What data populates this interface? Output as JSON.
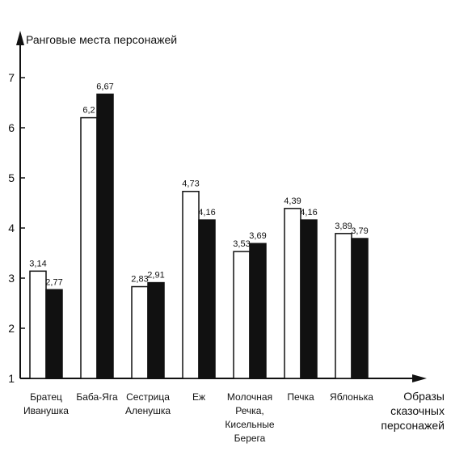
{
  "chart_data": {
    "type": "bar",
    "ylabel": "Ранговые места персонажей",
    "xlabel": [
      "Образы",
      "сказочных",
      "персонажей"
    ],
    "ylim": [
      1,
      7
    ],
    "yticks": [
      1,
      2,
      3,
      4,
      5,
      6,
      7
    ],
    "grid": false,
    "legend": "none",
    "categories": [
      [
        "Братец",
        "Иванушка"
      ],
      [
        "Баба-Яга"
      ],
      [
        "Сестрица",
        "Аленушка"
      ],
      [
        "Еж"
      ],
      [
        "Молочная",
        "Речка,",
        "Кисельные",
        "Берега"
      ],
      [
        "Печка"
      ],
      [
        "Яблонька"
      ]
    ],
    "series": [
      {
        "values": [
          3.14,
          6.2,
          2.83,
          4.73,
          3.53,
          4.39,
          3.89
        ],
        "labels": [
          "3,14",
          "6,2",
          "2,83",
          "4,73",
          "3,53",
          "4,39",
          "3,89"
        ],
        "color": "#ffffff"
      },
      {
        "values": [
          2.77,
          6.67,
          2.91,
          4.16,
          3.69,
          4.16,
          3.79
        ],
        "labels": [
          "2,77",
          "6,67",
          "2,91",
          "4,16",
          "3,69",
          "4,16",
          "3,79"
        ],
        "color": "#111111"
      }
    ]
  }
}
